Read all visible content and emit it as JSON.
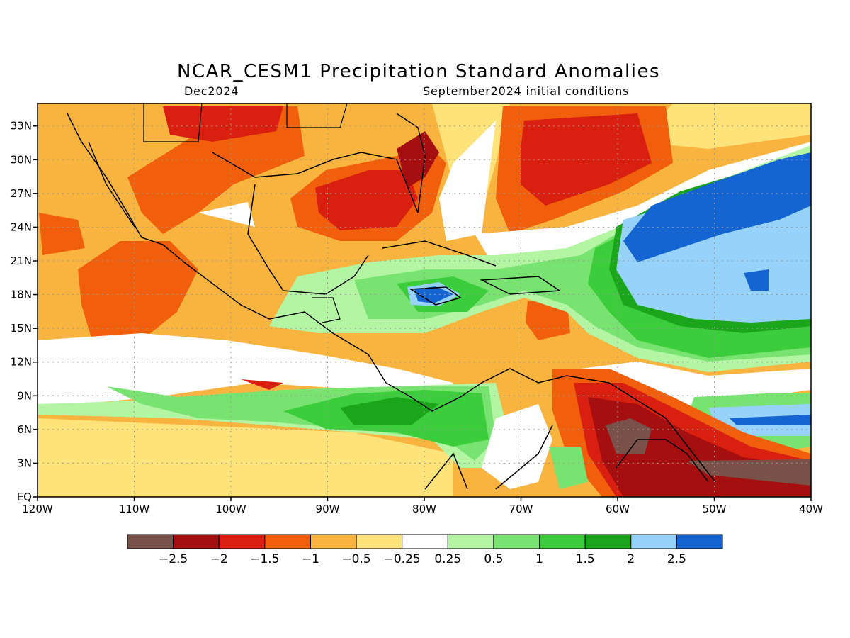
{
  "title": "NCAR_CESM1 Precipitation Standard Anomalies",
  "valid_time": "Dec2024",
  "init_conditions": "September2024 initial conditions",
  "x_ticks": [
    "120W",
    "110W",
    "100W",
    "90W",
    "80W",
    "70W",
    "60W",
    "50W",
    "40W"
  ],
  "y_ticks": [
    "33N",
    "30N",
    "27N",
    "24N",
    "21N",
    "18N",
    "15N",
    "12N",
    "9N",
    "6N",
    "3N",
    "EQ"
  ],
  "colorbar": {
    "colors": [
      "#7a5148",
      "#a50f0f",
      "#d92010",
      "#f25f0c",
      "#f9b440",
      "#fee27a",
      "#ffffff",
      "#b4f5a4",
      "#78e370",
      "#3ccd3c",
      "#1aa51a",
      "#96d2fa",
      "#1464d2"
    ],
    "labels": [
      "-2.5",
      "-2",
      "-1.5",
      "-1",
      "-0.5",
      "-0.25",
      "0.25",
      "0.5",
      "1",
      "1.5",
      "2",
      "2.5"
    ]
  },
  "colors": {
    "dark_red": "#a50f0f",
    "red": "#d92010",
    "orange": "#f25f0c",
    "light_orange": "#f9b440",
    "yellow": "#fee27a",
    "white": "#ffffff",
    "pale_green": "#b4f5a4",
    "light_green": "#78e370",
    "green": "#3ccd3c",
    "dark_green": "#1aa51a",
    "light_blue": "#96d2fa",
    "blue": "#1464d2",
    "brown": "#7a5148"
  }
}
